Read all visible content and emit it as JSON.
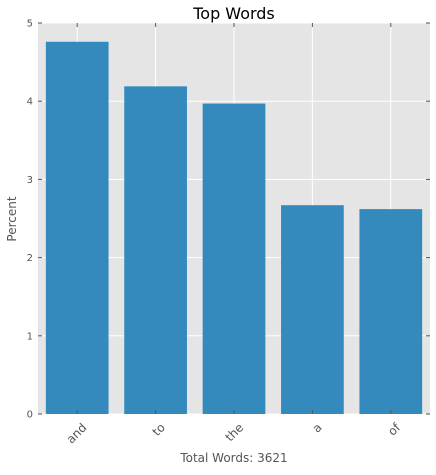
{
  "chart_data": {
    "type": "bar",
    "title": "Top Words",
    "xlabel": "Total Words: 3621",
    "ylabel": "Percent",
    "categories": [
      "and",
      "to",
      "the",
      "a",
      "of"
    ],
    "values": [
      4.76,
      4.19,
      3.97,
      2.67,
      2.62
    ],
    "ylim": [
      0,
      5
    ],
    "yticks": [
      0,
      1,
      2,
      3,
      4,
      5
    ],
    "grid": true,
    "colors": {
      "bar": "#348ABD",
      "plot_background": "#E5E5E5",
      "grid": "#FFFFFF",
      "text": "#555555",
      "title": "#000000"
    }
  }
}
